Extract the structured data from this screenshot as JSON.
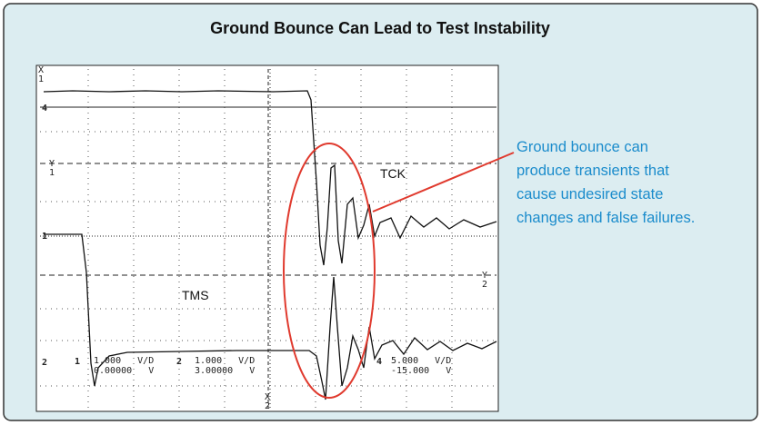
{
  "title": "Ground Bounce Can Lead to Test Instability",
  "callout": [
    "Ground bounce can",
    "produce transients that",
    "cause undesired state",
    "changes and false failures."
  ],
  "scope": {
    "traces": {
      "tck": "TCK",
      "tms": "TMS"
    },
    "cursors": {
      "x1": [
        "X",
        "1"
      ],
      "y1": [
        "Y",
        "1"
      ],
      "y2": [
        "Y",
        "2"
      ],
      "x2": [
        "X",
        "2"
      ]
    },
    "channel_markers": [
      "4",
      "1",
      "2"
    ],
    "readout": [
      {
        "channel": "1",
        "scale": "1.000   V/D",
        "offset": "0.00000   V"
      },
      {
        "channel": "2",
        "scale": "1.000   V/D",
        "offset": "3.00000   V"
      },
      {
        "channel": "4",
        "scale": "5.000   V/D",
        "offset": "-15.000   V"
      }
    ]
  }
}
